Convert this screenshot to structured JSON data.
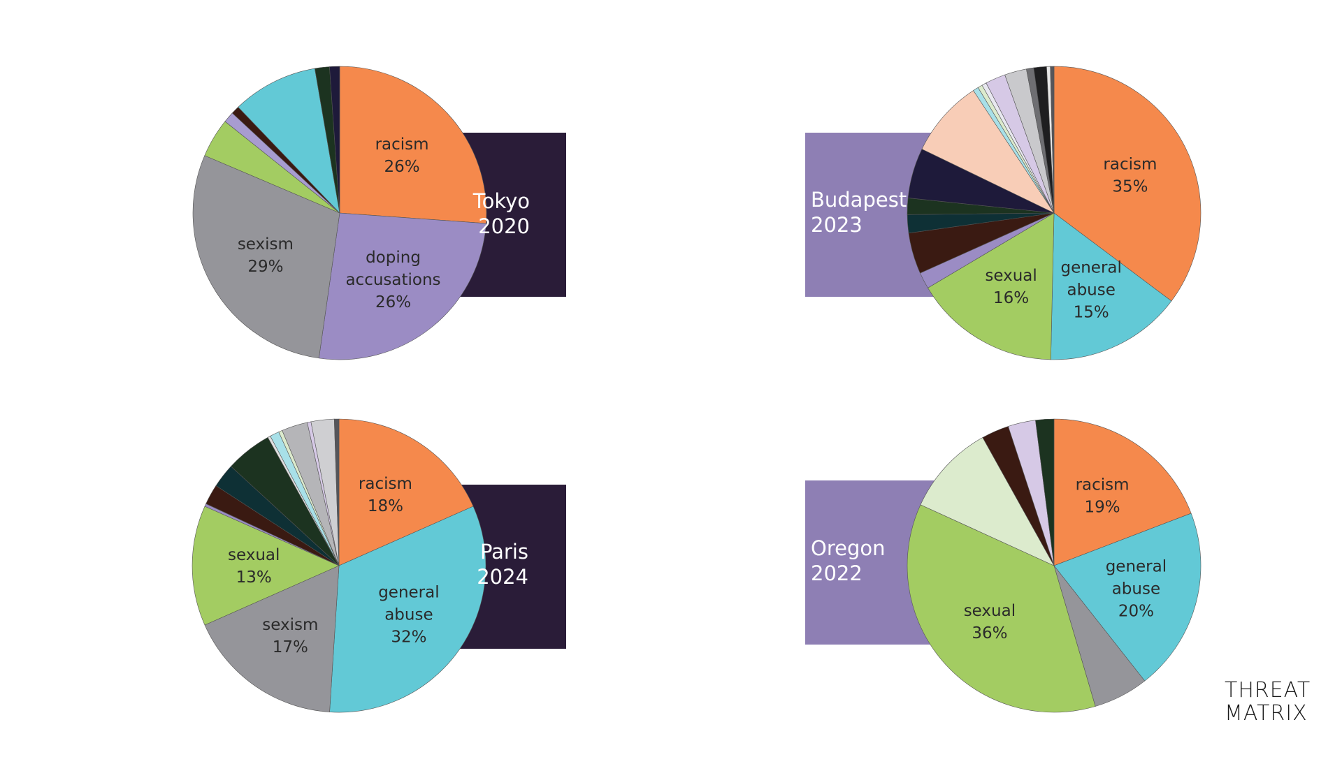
{
  "chart_data": [
    {
      "type": "pie",
      "title": "Tokyo 2020",
      "title_lines": [
        "Tokyo",
        "2020"
      ],
      "card_color": "#2a1c38",
      "card_side": "right",
      "slices": [
        {
          "label": "racism",
          "value": 26,
          "display": "26%",
          "color": "#f5894c"
        },
        {
          "label": "doping accusations",
          "label_lines": [
            "doping",
            "accusations"
          ],
          "value": 26,
          "display": "26%",
          "color": "#9b8cc4"
        },
        {
          "label": "sexism",
          "value": 29,
          "display": "29%",
          "color": "#95959a"
        },
        {
          "label": "",
          "value": 4.3,
          "color": "#a3cc62"
        },
        {
          "label": "",
          "value": 1.2,
          "color": "#a89cd0"
        },
        {
          "label": "",
          "value": 0.9,
          "color": "#3a1a12"
        },
        {
          "label": "",
          "value": 9.4,
          "color": "#62c9d6"
        },
        {
          "label": "",
          "value": 1.6,
          "color": "#1c3320"
        },
        {
          "label": "",
          "value": 1.1,
          "color": "#1e1a3a"
        }
      ]
    },
    {
      "type": "pie",
      "title": "Budapest 2023",
      "title_lines": [
        "Budapest",
        "2023"
      ],
      "card_color": "#8e7fb4",
      "card_side": "left",
      "slices": [
        {
          "label": "racism",
          "value": 35,
          "display": "35%",
          "color": "#f5894c"
        },
        {
          "label": "general abuse",
          "label_lines": [
            "general",
            "abuse"
          ],
          "value": 15,
          "display": "15%",
          "color": "#62c9d6"
        },
        {
          "label": "sexual",
          "value": 16,
          "display": "16%",
          "color": "#a3cc62"
        },
        {
          "label": "",
          "value": 1.8,
          "color": "#9b8cc4"
        },
        {
          "label": "",
          "value": 4.5,
          "color": "#3a1a12"
        },
        {
          "label": "",
          "value": 2.0,
          "color": "#0e3035"
        },
        {
          "label": "",
          "value": 1.8,
          "color": "#1c3320"
        },
        {
          "label": "",
          "value": 5.5,
          "color": "#1e1a3a"
        },
        {
          "label": "",
          "value": 8.5,
          "color": "#f8cdb7"
        },
        {
          "label": "",
          "value": 0.6,
          "color": "#a8e0e8"
        },
        {
          "label": "",
          "value": 0.5,
          "color": "#dcebcd"
        },
        {
          "label": "",
          "value": 0.5,
          "color": "#e8e8f0"
        },
        {
          "label": "",
          "value": 2.2,
          "color": "#d6c9e6"
        },
        {
          "label": "",
          "value": 2.4,
          "color": "#c9c9cc"
        },
        {
          "label": "",
          "value": 0.8,
          "color": "#6e6e72"
        },
        {
          "label": "",
          "value": 1.4,
          "color": "#1e1e20"
        },
        {
          "label": "",
          "value": 0.4,
          "color": "#e8e8e8"
        },
        {
          "label": "",
          "value": 0.4,
          "color": "#55555a"
        }
      ]
    },
    {
      "type": "pie",
      "title": "Paris 2024",
      "title_lines": [
        "Paris",
        "2024"
      ],
      "card_color": "#2a1c38",
      "card_side": "right",
      "slices": [
        {
          "label": "racism",
          "value": 18,
          "display": "18%",
          "color": "#f5894c"
        },
        {
          "label": "general abuse",
          "label_lines": [
            "general",
            "abuse"
          ],
          "value": 32,
          "display": "32%",
          "color": "#62c9d6"
        },
        {
          "label": "sexism",
          "value": 17,
          "display": "17%",
          "color": "#95959a"
        },
        {
          "label": "sexual",
          "value": 13,
          "display": "13%",
          "color": "#a3cc62"
        },
        {
          "label": "",
          "value": 0.3,
          "color": "#9b8cc4"
        },
        {
          "label": "",
          "value": 2.2,
          "color": "#3a1a12"
        },
        {
          "label": "",
          "value": 2.6,
          "color": "#0e3035"
        },
        {
          "label": "",
          "value": 5.0,
          "color": "#1c3320"
        },
        {
          "label": "",
          "value": 0.3,
          "color": "#e0e0e0"
        },
        {
          "label": "",
          "value": 1.0,
          "color": "#a8e0e8"
        },
        {
          "label": "",
          "value": 0.4,
          "color": "#dcebcd"
        },
        {
          "label": "",
          "value": 2.8,
          "color": "#b5b5b8"
        },
        {
          "label": "",
          "value": 0.4,
          "color": "#d6c9e6"
        },
        {
          "label": "",
          "value": 2.5,
          "color": "#cfcfd2"
        },
        {
          "label": "",
          "value": 0.5,
          "color": "#55555a"
        }
      ]
    },
    {
      "type": "pie",
      "title": "Oregon 2022",
      "title_lines": [
        "Oregon",
        "2022"
      ],
      "card_color": "#8e7fb4",
      "card_side": "left",
      "slices": [
        {
          "label": "racism",
          "value": 19,
          "display": "19%",
          "color": "#f5894c"
        },
        {
          "label": "general abuse",
          "label_lines": [
            "general",
            "abuse"
          ],
          "value": 20,
          "display": "20%",
          "color": "#62c9d6"
        },
        {
          "label": "",
          "value": 6,
          "color": "#95959a"
        },
        {
          "label": "sexual",
          "value": 36,
          "display": "36%",
          "color": "#a3cc62"
        },
        {
          "label": "",
          "value": 10,
          "color": "#dcebcd"
        },
        {
          "label": "",
          "value": 3,
          "color": "#3a1a12"
        },
        {
          "label": "",
          "value": 3,
          "color": "#d6c9e6"
        },
        {
          "label": "",
          "value": 2,
          "color": "#1c3320"
        }
      ]
    }
  ],
  "logo": {
    "line1": "THREAT",
    "line2": "MATRIX"
  }
}
